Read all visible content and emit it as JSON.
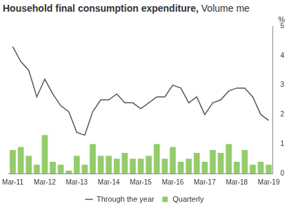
{
  "chart_data": {
    "type": "bar",
    "title": "Household final consumption expenditure,",
    "subtitle": "Volume me",
    "y_label": "%",
    "categories": [
      "Mar-11",
      null,
      null,
      null,
      "Mar-12",
      null,
      null,
      null,
      "Mar-13",
      null,
      null,
      null,
      "Mar-14",
      null,
      null,
      null,
      "Mar-15",
      null,
      null,
      null,
      "Mar-16",
      null,
      null,
      null,
      "Mar-17",
      null,
      null,
      null,
      "Mar-18",
      null,
      null,
      null,
      "Mar-19"
    ],
    "series": [
      {
        "name": "Quarterly",
        "type": "bar",
        "color": "#93cc6a",
        "values": [
          0.8,
          0.9,
          0.6,
          0.3,
          1.3,
          0.4,
          0.3,
          0.1,
          0.6,
          0.3,
          1.0,
          0.6,
          0.6,
          0.5,
          0.7,
          0.5,
          0.5,
          0.6,
          1.0,
          0.5,
          0.9,
          0.4,
          0.5,
          0.7,
          0.4,
          0.8,
          0.7,
          1.0,
          0.4,
          0.8,
          0.3,
          0.4,
          0.3
        ]
      },
      {
        "name": "Through the year",
        "type": "line",
        "color": "#555555",
        "values": [
          4.3,
          3.8,
          3.5,
          2.6,
          3.2,
          2.7,
          2.3,
          2.1,
          1.4,
          1.3,
          2.1,
          2.5,
          2.5,
          2.7,
          2.4,
          2.4,
          2.2,
          2.4,
          2.6,
          2.6,
          3.0,
          2.9,
          2.4,
          2.6,
          2.0,
          2.4,
          2.5,
          2.8,
          2.9,
          2.9,
          2.6,
          2.0,
          1.8
        ]
      }
    ],
    "ylim": [
      0,
      5
    ],
    "yticks": [
      0,
      1,
      2,
      3,
      4,
      5
    ],
    "grid": false,
    "legend": "bottom"
  }
}
